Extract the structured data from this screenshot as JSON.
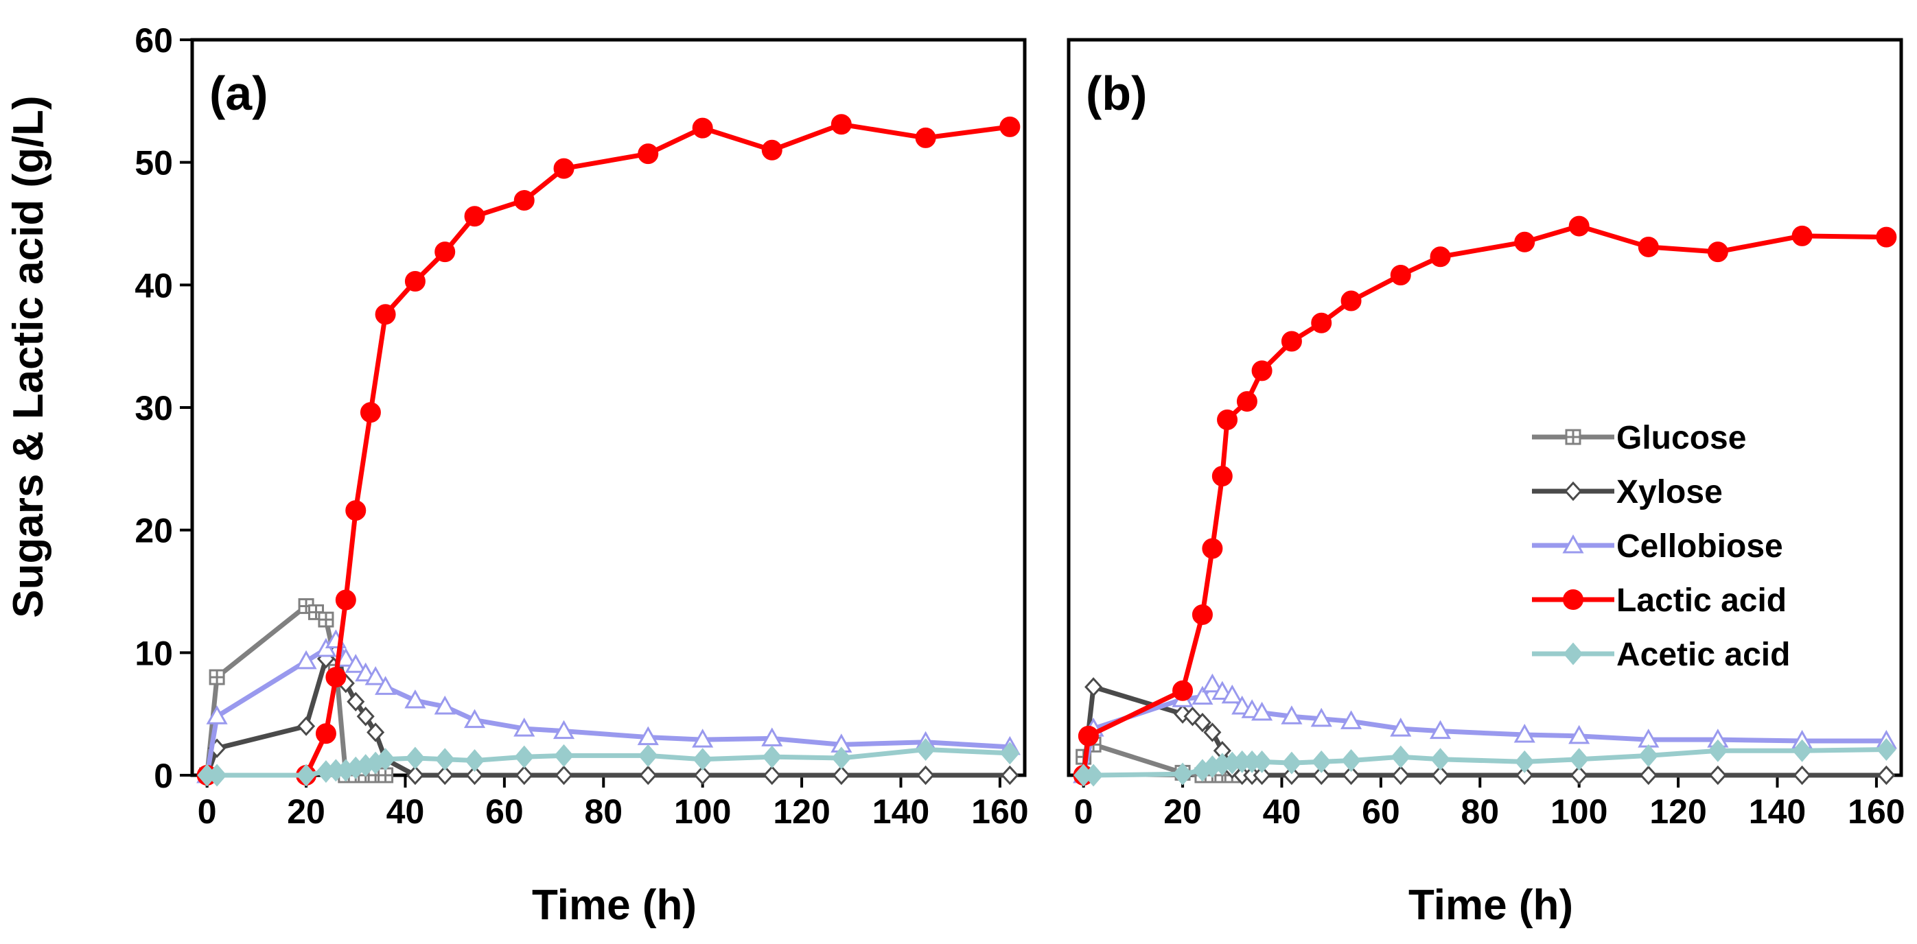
{
  "chart_data": [
    {
      "type": "line",
      "panel_label": "(a)",
      "xlabel": "Time (h)",
      "ylabel": "Sugars & Lactic acid (g/L)",
      "xlim": [
        -3,
        165
      ],
      "ylim": [
        0,
        60
      ],
      "xticks": [
        0,
        20,
        40,
        60,
        80,
        100,
        120,
        140,
        160
      ],
      "yticks": [
        0,
        10,
        20,
        30,
        40,
        50,
        60
      ],
      "grid": false,
      "legend": null,
      "series": [
        {
          "name": "Glucose",
          "color": "#808080",
          "marker": "square-cross-open",
          "x": [
            0,
            2,
            20,
            22,
            24,
            26,
            28,
            30,
            32,
            34,
            36
          ],
          "y": [
            0,
            8.0,
            13.8,
            13.3,
            12.7,
            9.0,
            0,
            0,
            0,
            0,
            0
          ]
        },
        {
          "name": "Xylose",
          "color": "#4a4a4a",
          "marker": "diamond-open",
          "x": [
            0,
            2,
            20,
            24,
            26,
            28,
            30,
            32,
            34,
            36,
            42,
            48,
            54,
            64,
            72,
            89,
            100,
            114,
            128,
            145,
            162
          ],
          "y": [
            0,
            2.2,
            4.0,
            9.5,
            10.0,
            7.5,
            6.0,
            4.8,
            3.5,
            1.3,
            0,
            0,
            0,
            0,
            0,
            0,
            0,
            0,
            0,
            0,
            0
          ]
        },
        {
          "name": "Cellobiose",
          "color": "#9999ee",
          "marker": "triangle-open",
          "x": [
            0,
            2,
            20,
            24,
            26,
            28,
            30,
            32,
            34,
            36,
            42,
            48,
            54,
            64,
            72,
            89,
            100,
            114,
            128,
            145,
            162
          ],
          "y": [
            0,
            4.8,
            9.3,
            10.3,
            11.0,
            9.5,
            9.0,
            8.3,
            8.0,
            7.2,
            6.1,
            5.6,
            4.5,
            3.8,
            3.6,
            3.1,
            2.9,
            3.0,
            2.5,
            2.7,
            2.3
          ]
        },
        {
          "name": "Lactic acid",
          "color": "#ff0000",
          "marker": "circle-filled",
          "x": [
            0,
            20,
            24,
            26,
            28,
            30,
            33,
            36,
            42,
            48,
            54,
            64,
            72,
            89,
            100,
            114,
            128,
            145,
            162
          ],
          "y": [
            0,
            0,
            3.4,
            8.0,
            14.3,
            21.6,
            29.6,
            37.6,
            40.3,
            42.7,
            45.6,
            46.9,
            49.5,
            50.7,
            52.8,
            51.0,
            53.1,
            52.0,
            52.9
          ]
        },
        {
          "name": "Acetic acid",
          "color": "#99cccc",
          "marker": "diamond-filled",
          "x": [
            0,
            2,
            20,
            24,
            26,
            28,
            30,
            32,
            34,
            36,
            42,
            48,
            54,
            64,
            72,
            89,
            100,
            114,
            128,
            145,
            162
          ],
          "y": [
            0,
            0,
            0,
            0.3,
            0.4,
            0.4,
            0.6,
            0.8,
            1.0,
            1.3,
            1.4,
            1.3,
            1.2,
            1.5,
            1.6,
            1.6,
            1.3,
            1.5,
            1.4,
            2.1,
            1.8
          ]
        }
      ]
    },
    {
      "type": "line",
      "panel_label": "(b)",
      "xlabel": "Time (h)",
      "ylabel": "",
      "xlim": [
        -3,
        165
      ],
      "ylim": [
        0,
        60
      ],
      "xticks": [
        0,
        20,
        40,
        60,
        80,
        100,
        120,
        140,
        160
      ],
      "yticks": [],
      "grid": false,
      "legend": "center-right",
      "series": [
        {
          "name": "Glucose",
          "color": "#808080",
          "marker": "square-cross-open",
          "x": [
            0,
            2,
            20,
            24,
            26,
            28,
            30
          ],
          "y": [
            1.5,
            2.5,
            0.2,
            0,
            0,
            0,
            0
          ]
        },
        {
          "name": "Xylose",
          "color": "#4a4a4a",
          "marker": "diamond-open",
          "x": [
            0,
            2,
            20,
            22,
            24,
            26,
            28,
            30,
            32,
            34,
            36,
            42,
            48,
            54,
            64,
            72,
            89,
            100,
            114,
            128,
            145,
            162
          ],
          "y": [
            0,
            7.2,
            5.0,
            4.8,
            4.3,
            3.5,
            2.0,
            0.5,
            0,
            0,
            0,
            0,
            0,
            0,
            0,
            0,
            0,
            0,
            0,
            0,
            0,
            0
          ]
        },
        {
          "name": "Cellobiose",
          "color": "#9999ee",
          "marker": "triangle-open",
          "x": [
            0,
            2,
            20,
            24,
            26,
            28,
            30,
            32,
            34,
            36,
            42,
            48,
            54,
            64,
            72,
            89,
            100,
            114,
            128,
            145,
            162
          ],
          "y": [
            0,
            3.8,
            6.2,
            6.4,
            7.4,
            6.8,
            6.5,
            5.6,
            5.3,
            5.1,
            4.8,
            4.6,
            4.4,
            3.8,
            3.6,
            3.3,
            3.2,
            2.9,
            2.9,
            2.8,
            2.8
          ]
        },
        {
          "name": "Lactic acid",
          "color": "#ff0000",
          "marker": "circle-filled",
          "x": [
            0,
            1,
            20,
            24,
            26,
            28,
            29,
            33,
            36,
            42,
            48,
            54,
            64,
            72,
            89,
            100,
            114,
            128,
            145,
            162
          ],
          "y": [
            0,
            3.2,
            6.9,
            13.1,
            18.5,
            24.4,
            29.0,
            30.5,
            33.0,
            35.4,
            36.9,
            38.7,
            40.8,
            42.3,
            43.5,
            44.8,
            43.1,
            42.7,
            44.0,
            43.9
          ]
        },
        {
          "name": "Acetic acid",
          "color": "#99cccc",
          "marker": "diamond-filled",
          "x": [
            0,
            2,
            20,
            24,
            26,
            28,
            30,
            32,
            34,
            36,
            42,
            48,
            54,
            64,
            72,
            89,
            100,
            114,
            128,
            145,
            162
          ],
          "y": [
            0,
            0,
            0.1,
            0.4,
            0.7,
            0.9,
            1.0,
            1.1,
            1.1,
            1.1,
            1.0,
            1.1,
            1.2,
            1.5,
            1.3,
            1.1,
            1.3,
            1.6,
            2.0,
            2.0,
            2.1
          ]
        }
      ]
    }
  ]
}
